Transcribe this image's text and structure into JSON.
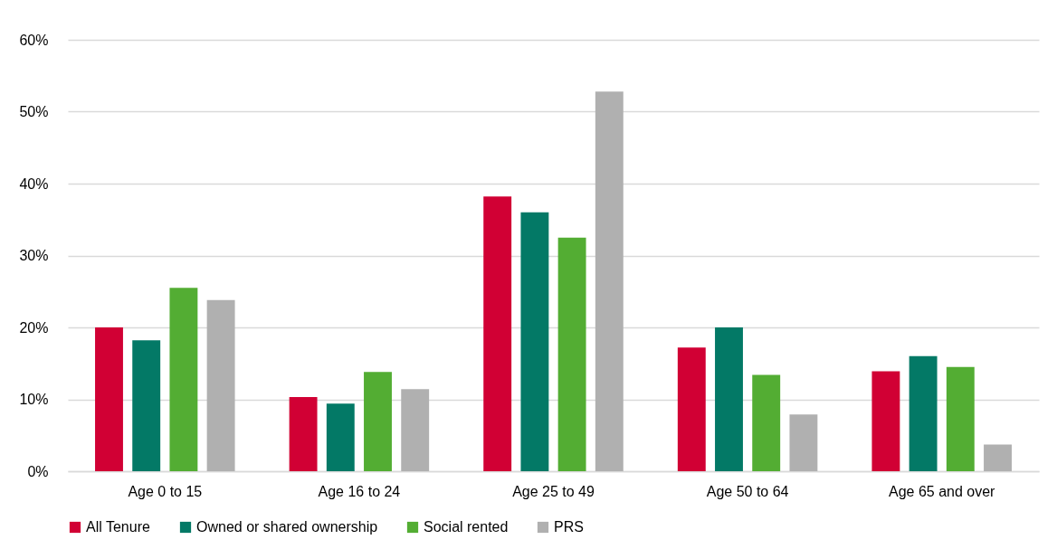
{
  "chart_data": {
    "type": "bar",
    "categories": [
      "Age 0 to 15",
      "Age 16 to 24",
      "Age 25 to 49",
      "Age 50 to 64",
      "Age 65 and over"
    ],
    "series": [
      {
        "name": "All Tenure",
        "color": "#d10034",
        "values": [
          20.0,
          10.3,
          38.2,
          17.2,
          13.9
        ]
      },
      {
        "name": "Owned or shared ownership",
        "color": "#037966",
        "values": [
          18.2,
          9.4,
          36.0,
          20.0,
          16.0
        ]
      },
      {
        "name": "Social rented",
        "color": "#53ad33",
        "values": [
          25.5,
          13.8,
          32.5,
          13.4,
          14.5
        ]
      },
      {
        "name": "PRS",
        "color": "#b0b0b0",
        "values": [
          23.8,
          11.4,
          52.8,
          7.9,
          3.7
        ]
      }
    ],
    "ylim": [
      0,
      60
    ],
    "yticks": [
      {
        "value": 0,
        "label": "0%"
      },
      {
        "value": 10,
        "label": "10%"
      },
      {
        "value": 20,
        "label": "20%"
      },
      {
        "value": 30,
        "label": "30%"
      },
      {
        "value": 40,
        "label": "40%"
      },
      {
        "value": 50,
        "label": "50%"
      },
      {
        "value": 60,
        "label": "60%"
      }
    ],
    "grid": "y",
    "legend": "bottom"
  }
}
